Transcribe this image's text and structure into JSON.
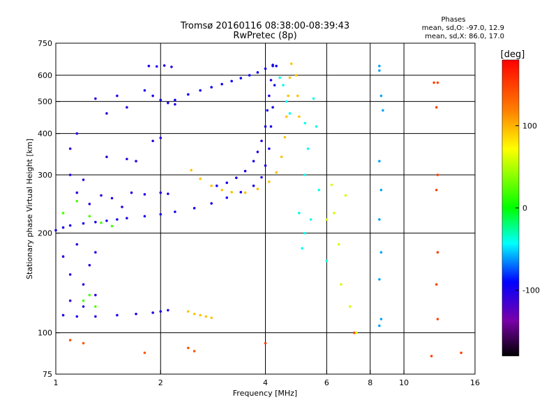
{
  "chart_data": {
    "type": "scatter",
    "title": "Tromsø 20160116 08:38:00-08:39:43",
    "subtitle": "RwPretec (8p)",
    "xlabel": "Frequency [MHz]",
    "ylabel": "Stationary phase Virtual Height [km]",
    "x_scale": "log",
    "y_scale": "log",
    "xlim": [
      1,
      16
    ],
    "ylim": [
      75,
      750
    ],
    "x_ticks": [
      1,
      2,
      4,
      6,
      8,
      10,
      16
    ],
    "x_tick_labels": [
      "1",
      "2",
      "4",
      "6",
      "8",
      "10",
      "16"
    ],
    "y_ticks": [
      75,
      100,
      200,
      300,
      400,
      500,
      600,
      750
    ],
    "y_tick_labels": [
      "75",
      "100",
      "200",
      "300",
      "400",
      "500",
      "600",
      "750"
    ],
    "grid": true,
    "stats": {
      "title": "Phases",
      "line_o": "mean, sd,O: -97.0, 12.9",
      "line_x": "mean, sd,X:  86.0, 17.0"
    },
    "colorbar": {
      "label": "[deg]",
      "range": [
        -180,
        180
      ],
      "ticks": [
        100,
        0,
        -100
      ],
      "tick_labels": [
        "100",
        "0",
        "-100"
      ],
      "colors": [
        "#ff0000",
        "#ff7f00",
        "#ffff00",
        "#00ff00",
        "#00ffff",
        "#0000ff",
        "#7a00aa",
        "#000000"
      ]
    },
    "series": [
      {
        "values": [
          [
            1.0,
            204
          ],
          [
            1.05,
            208
          ],
          [
            1.1,
            211
          ],
          [
            1.2,
            214
          ],
          [
            1.3,
            216
          ],
          [
            1.4,
            218
          ],
          [
            1.5,
            220
          ],
          [
            1.6,
            222
          ],
          [
            1.8,
            225
          ],
          [
            2.0,
            228
          ],
          [
            2.2,
            232
          ],
          [
            2.5,
            238
          ],
          [
            2.8,
            246
          ],
          [
            3.1,
            256
          ],
          [
            3.4,
            266
          ],
          [
            3.7,
            278
          ],
          [
            3.9,
            295
          ],
          [
            4.0,
            320
          ],
          [
            4.1,
            360
          ],
          [
            4.15,
            420
          ],
          [
            4.2,
            480
          ],
          [
            4.25,
            560
          ],
          [
            4.3,
            640
          ]
        ],
        "phase": -100
      },
      {
        "values": [
          [
            2.2,
            505
          ],
          [
            2.4,
            525
          ],
          [
            2.6,
            540
          ],
          [
            2.8,
            552
          ],
          [
            3.0,
            564
          ],
          [
            3.2,
            576
          ],
          [
            3.4,
            588
          ],
          [
            3.6,
            600
          ],
          [
            3.8,
            612
          ],
          [
            4.0,
            628
          ],
          [
            4.2,
            645
          ]
        ],
        "phase": -95
      },
      {
        "values": [
          [
            2.9,
            278
          ],
          [
            3.1,
            284
          ],
          [
            3.3,
            294
          ],
          [
            3.5,
            308
          ],
          [
            3.7,
            330
          ],
          [
            3.8,
            352
          ],
          [
            3.9,
            380
          ],
          [
            4.0,
            420
          ],
          [
            4.05,
            470
          ],
          [
            4.1,
            520
          ],
          [
            4.15,
            580
          ],
          [
            4.2,
            640
          ]
        ],
        "phase": -100
      },
      {
        "values": [
          [
            1.8,
            540
          ],
          [
            1.9,
            520
          ],
          [
            2.0,
            505
          ],
          [
            2.1,
            495
          ],
          [
            2.2,
            490
          ],
          [
            1.85,
            640
          ],
          [
            1.95,
            638
          ],
          [
            2.05,
            642
          ],
          [
            2.15,
            636
          ]
        ],
        "phase": -100
      },
      {
        "values": [
          [
            2.45,
            310
          ],
          [
            2.6,
            292
          ],
          [
            2.8,
            278
          ],
          [
            3.0,
            270
          ],
          [
            3.2,
            266
          ],
          [
            3.5,
            265
          ],
          [
            3.8,
            272
          ],
          [
            4.1,
            286
          ],
          [
            4.3,
            305
          ],
          [
            4.45,
            340
          ],
          [
            4.55,
            390
          ],
          [
            4.6,
            450
          ],
          [
            4.65,
            520
          ],
          [
            4.7,
            590
          ],
          [
            4.75,
            650
          ],
          [
            4.9,
            600
          ],
          [
            4.95,
            520
          ],
          [
            5.0,
            450
          ]
        ],
        "phase": 95
      },
      {
        "values": [
          [
            1.05,
            113
          ],
          [
            1.15,
            112
          ],
          [
            1.3,
            112
          ],
          [
            1.5,
            113
          ],
          [
            1.7,
            114
          ],
          [
            1.9,
            115
          ],
          [
            2.0,
            116
          ],
          [
            2.1,
            117
          ]
        ],
        "phase": -100
      },
      {
        "values": [
          [
            2.4,
            116
          ],
          [
            2.5,
            114
          ],
          [
            2.6,
            113
          ],
          [
            2.7,
            112
          ],
          [
            2.8,
            111
          ]
        ],
        "phase": 95
      },
      {
        "values": [
          [
            1.05,
            170
          ],
          [
            1.1,
            150
          ],
          [
            1.15,
            185
          ],
          [
            1.2,
            140
          ],
          [
            1.25,
            160
          ],
          [
            1.3,
            130
          ],
          [
            1.1,
            125
          ],
          [
            1.2,
            120
          ],
          [
            1.3,
            175
          ],
          [
            1.15,
            265
          ],
          [
            1.25,
            245
          ],
          [
            1.35,
            260
          ],
          [
            1.45,
            255
          ],
          [
            1.55,
            240
          ],
          [
            1.65,
            265
          ],
          [
            1.8,
            262
          ],
          [
            2.0,
            265
          ],
          [
            2.1,
            263
          ],
          [
            1.1,
            300
          ],
          [
            1.2,
            290
          ],
          [
            1.15,
            400
          ],
          [
            1.4,
            340
          ],
          [
            1.6,
            335
          ],
          [
            1.7,
            330
          ],
          [
            1.9,
            380
          ],
          [
            2.0,
            388
          ],
          [
            1.5,
            520
          ],
          [
            1.6,
            480
          ],
          [
            1.4,
            460
          ],
          [
            1.3,
            510
          ],
          [
            1.1,
            360
          ]
        ],
        "phase": -105
      },
      {
        "values": [
          [
            1.05,
            230
          ],
          [
            1.15,
            250
          ],
          [
            1.25,
            225
          ],
          [
            1.35,
            215
          ],
          [
            1.45,
            210
          ],
          [
            1.25,
            130
          ],
          [
            1.3,
            120
          ],
          [
            1.2,
            125
          ]
        ],
        "phase": 20
      },
      {
        "values": [
          [
            4.4,
            590
          ],
          [
            4.5,
            560
          ],
          [
            4.6,
            500
          ],
          [
            4.7,
            460
          ],
          [
            5.2,
            430
          ],
          [
            5.5,
            510
          ],
          [
            5.3,
            360
          ],
          [
            5.2,
            300
          ],
          [
            5.6,
            420
          ],
          [
            5.0,
            230
          ],
          [
            5.4,
            220
          ],
          [
            5.1,
            180
          ],
          [
            6.0,
            165
          ],
          [
            5.7,
            270
          ],
          [
            5.2,
            200
          ]
        ],
        "phase": -40
      },
      {
        "values": [
          [
            6.2,
            280
          ],
          [
            6.5,
            185
          ],
          [
            6.6,
            140
          ],
          [
            7.0,
            120
          ],
          [
            7.3,
            100
          ],
          [
            6.0,
            220
          ],
          [
            6.3,
            230
          ],
          [
            6.8,
            260
          ]
        ],
        "phase": 60
      },
      {
        "values": [
          [
            8.5,
            640
          ],
          [
            8.5,
            620
          ],
          [
            8.6,
            520
          ],
          [
            8.7,
            470
          ],
          [
            8.5,
            330
          ],
          [
            8.6,
            270
          ],
          [
            8.5,
            220
          ],
          [
            8.6,
            175
          ],
          [
            8.5,
            145
          ],
          [
            8.6,
            110
          ],
          [
            8.5,
            105
          ]
        ],
        "phase": -60
      },
      {
        "values": [
          [
            12.2,
            570
          ],
          [
            12.5,
            570
          ],
          [
            12.4,
            480
          ],
          [
            12.5,
            300
          ],
          [
            12.4,
            270
          ],
          [
            12.5,
            175
          ],
          [
            12.4,
            140
          ],
          [
            12.5,
            110
          ],
          [
            12.0,
            85
          ],
          [
            14.6,
            87
          ],
          [
            7.2,
            100
          ],
          [
            4.0,
            93
          ]
        ],
        "phase": 150
      },
      {
        "values": [
          [
            2.4,
            90
          ],
          [
            2.5,
            88
          ],
          [
            1.8,
            87
          ],
          [
            1.1,
            95
          ],
          [
            1.2,
            93
          ]
        ],
        "phase": 140
      }
    ]
  }
}
